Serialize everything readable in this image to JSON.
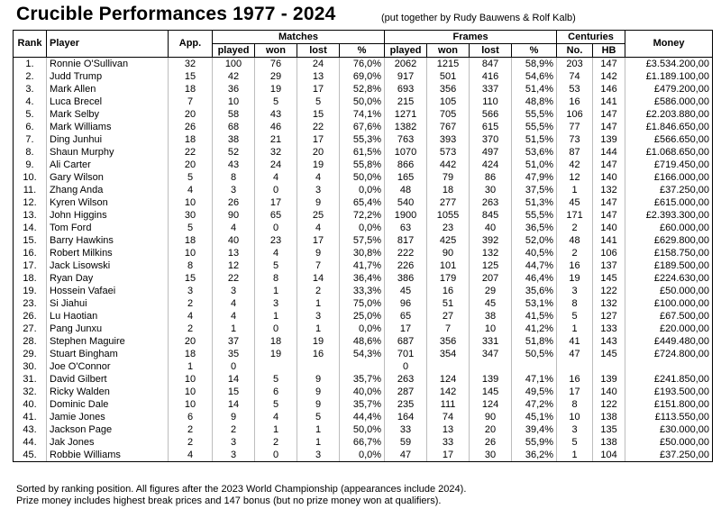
{
  "title": "Crucible Performances 1977 - 2024",
  "credit": "(put together by Rudy Bauwens & Rolf Kalb)",
  "headers": {
    "rank": "Rank",
    "player": "Player",
    "app": "App.",
    "matches": "Matches",
    "frames": "Frames",
    "centuries": "Centuries",
    "money": "Money",
    "played": "played",
    "won": "won",
    "lost": "lost",
    "pct": "%",
    "no": "No.",
    "hb": "HB"
  },
  "rows": [
    [
      "1.",
      "Ronnie O'Sullivan",
      "32",
      "100",
      "76",
      "24",
      "76,0%",
      "2062",
      "1215",
      "847",
      "58,9%",
      "203",
      "147",
      "£3.534.200,00"
    ],
    [
      "2.",
      "Judd Trump",
      "15",
      "42",
      "29",
      "13",
      "69,0%",
      "917",
      "501",
      "416",
      "54,6%",
      "74",
      "142",
      "£1.189.100,00"
    ],
    [
      "3.",
      "Mark Allen",
      "18",
      "36",
      "19",
      "17",
      "52,8%",
      "693",
      "356",
      "337",
      "51,4%",
      "53",
      "146",
      "£479.200,00"
    ],
    [
      "4.",
      "Luca Brecel",
      "7",
      "10",
      "5",
      "5",
      "50,0%",
      "215",
      "105",
      "110",
      "48,8%",
      "16",
      "141",
      "£586.000,00"
    ],
    [
      "5.",
      "Mark Selby",
      "20",
      "58",
      "43",
      "15",
      "74,1%",
      "1271",
      "705",
      "566",
      "55,5%",
      "106",
      "147",
      "£2.203.880,00"
    ],
    [
      "6.",
      "Mark Williams",
      "26",
      "68",
      "46",
      "22",
      "67,6%",
      "1382",
      "767",
      "615",
      "55,5%",
      "77",
      "147",
      "£1.846.650,00"
    ],
    [
      "7.",
      "Ding Junhui",
      "18",
      "38",
      "21",
      "17",
      "55,3%",
      "763",
      "393",
      "370",
      "51,5%",
      "73",
      "139",
      "£566.650,00"
    ],
    [
      "8.",
      "Shaun Murphy",
      "22",
      "52",
      "32",
      "20",
      "61,5%",
      "1070",
      "573",
      "497",
      "53,6%",
      "87",
      "144",
      "£1.068.650,00"
    ],
    [
      "9.",
      "Ali Carter",
      "20",
      "43",
      "24",
      "19",
      "55,8%",
      "866",
      "442",
      "424",
      "51,0%",
      "42",
      "147",
      "£719.450,00"
    ],
    [
      "10.",
      "Gary Wilson",
      "5",
      "8",
      "4",
      "4",
      "50,0%",
      "165",
      "79",
      "86",
      "47,9%",
      "12",
      "140",
      "£166.000,00"
    ],
    [
      "11.",
      "Zhang Anda",
      "4",
      "3",
      "0",
      "3",
      "0,0%",
      "48",
      "18",
      "30",
      "37,5%",
      "1",
      "132",
      "£37.250,00"
    ],
    [
      "12.",
      "Kyren Wilson",
      "10",
      "26",
      "17",
      "9",
      "65,4%",
      "540",
      "277",
      "263",
      "51,3%",
      "45",
      "147",
      "£615.000,00"
    ],
    [
      "13.",
      "John Higgins",
      "30",
      "90",
      "65",
      "25",
      "72,2%",
      "1900",
      "1055",
      "845",
      "55,5%",
      "171",
      "147",
      "£2.393.300,00"
    ],
    [
      "14.",
      "Tom Ford",
      "5",
      "4",
      "0",
      "4",
      "0,0%",
      "63",
      "23",
      "40",
      "36,5%",
      "2",
      "140",
      "£60.000,00"
    ],
    [
      "15.",
      "Barry Hawkins",
      "18",
      "40",
      "23",
      "17",
      "57,5%",
      "817",
      "425",
      "392",
      "52,0%",
      "48",
      "141",
      "£629.800,00"
    ],
    [
      "16.",
      "Robert Milkins",
      "10",
      "13",
      "4",
      "9",
      "30,8%",
      "222",
      "90",
      "132",
      "40,5%",
      "2",
      "106",
      "£158.750,00"
    ],
    [
      "17.",
      "Jack Lisowski",
      "8",
      "12",
      "5",
      "7",
      "41,7%",
      "226",
      "101",
      "125",
      "44,7%",
      "16",
      "137",
      "£189.500,00"
    ],
    [
      "18.",
      "Ryan Day",
      "15",
      "22",
      "8",
      "14",
      "36,4%",
      "386",
      "179",
      "207",
      "46,4%",
      "19",
      "145",
      "£224.630,00"
    ],
    [
      "19.",
      "Hossein Vafaei",
      "3",
      "3",
      "1",
      "2",
      "33,3%",
      "45",
      "16",
      "29",
      "35,6%",
      "3",
      "122",
      "£50.000,00"
    ],
    [
      "23.",
      "Si Jiahui",
      "2",
      "4",
      "3",
      "1",
      "75,0%",
      "96",
      "51",
      "45",
      "53,1%",
      "8",
      "132",
      "£100.000,00"
    ],
    [
      "26.",
      "Lu Haotian",
      "4",
      "4",
      "1",
      "3",
      "25,0%",
      "65",
      "27",
      "38",
      "41,5%",
      "5",
      "127",
      "£67.500,00"
    ],
    [
      "27.",
      "Pang Junxu",
      "2",
      "1",
      "0",
      "1",
      "0,0%",
      "17",
      "7",
      "10",
      "41,2%",
      "1",
      "133",
      "£20.000,00"
    ],
    [
      "28.",
      "Stephen Maguire",
      "20",
      "37",
      "18",
      "19",
      "48,6%",
      "687",
      "356",
      "331",
      "51,8%",
      "41",
      "143",
      "£449.480,00"
    ],
    [
      "29.",
      "Stuart Bingham",
      "18",
      "35",
      "19",
      "16",
      "54,3%",
      "701",
      "354",
      "347",
      "50,5%",
      "47",
      "145",
      "£724.800,00"
    ],
    [
      "30.",
      "Joe O'Connor",
      "1",
      "0",
      "",
      "",
      "",
      "0",
      "",
      "",
      "",
      "",
      "",
      ""
    ],
    [
      "31.",
      "David Gilbert",
      "10",
      "14",
      "5",
      "9",
      "35,7%",
      "263",
      "124",
      "139",
      "47,1%",
      "16",
      "139",
      "£241.850,00"
    ],
    [
      "32.",
      "Ricky Walden",
      "10",
      "15",
      "6",
      "9",
      "40,0%",
      "287",
      "142",
      "145",
      "49,5%",
      "17",
      "140",
      "£193.500,00"
    ],
    [
      "40.",
      "Dominic Dale",
      "10",
      "14",
      "5",
      "9",
      "35,7%",
      "235",
      "111",
      "124",
      "47,2%",
      "8",
      "122",
      "£151.800,00"
    ],
    [
      "41.",
      "Jamie Jones",
      "6",
      "9",
      "4",
      "5",
      "44,4%",
      "164",
      "74",
      "90",
      "45,1%",
      "10",
      "138",
      "£113.550,00"
    ],
    [
      "43.",
      "Jackson Page",
      "2",
      "2",
      "1",
      "1",
      "50,0%",
      "33",
      "13",
      "20",
      "39,4%",
      "3",
      "135",
      "£30.000,00"
    ],
    [
      "44.",
      "Jak Jones",
      "2",
      "3",
      "2",
      "1",
      "66,7%",
      "59",
      "33",
      "26",
      "55,9%",
      "5",
      "138",
      "£50.000,00"
    ],
    [
      "45.",
      "Robbie Williams",
      "4",
      "3",
      "0",
      "3",
      "0,0%",
      "47",
      "17",
      "30",
      "36,2%",
      "1",
      "104",
      "£37.250,00"
    ]
  ],
  "notes": [
    "Sorted by ranking position. All figures after the 2023 World Championship (appearances include 2024).",
    "Prize money includes highest break prices and 147 bonus (but no prize money won at qualifiers)."
  ]
}
